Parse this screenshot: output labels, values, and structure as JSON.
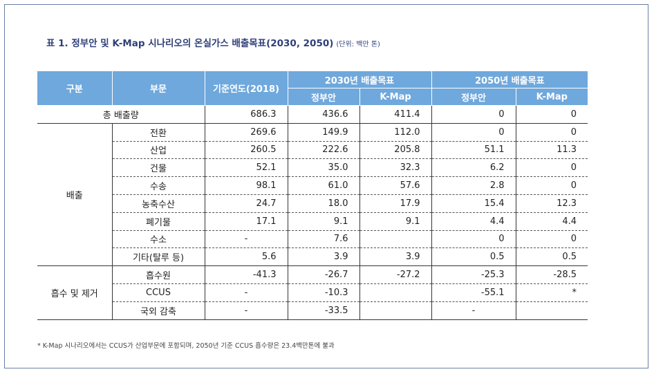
{
  "title": "표 1. 정부안 및 K-Map 시나리오의 온실가스 배출목표(2030, 2050)",
  "unit": "(단위: 백만 톤)",
  "header": {
    "category": "구분",
    "sector": "부문",
    "base_year": "기준연도(2018)",
    "target_2030": "2030년 배출목표",
    "target_2050": "2050년 배출목표",
    "gov": "정부안",
    "kmap": "K-Map"
  },
  "total_label": "총 배출량",
  "total": [
    "686.3",
    "436.6",
    "411.4",
    "0",
    "0"
  ],
  "groups": {
    "emission": "배출",
    "removal": "흡수 및 제거"
  },
  "rows": [
    {
      "sector": "전환",
      "values": [
        "269.6",
        "149.9",
        "112.0",
        "0",
        "0"
      ]
    },
    {
      "sector": "산업",
      "values": [
        "260.5",
        "222.6",
        "205.8",
        "51.1",
        "11.3"
      ]
    },
    {
      "sector": "건물",
      "values": [
        "52.1",
        "35.0",
        "32.3",
        "6.2",
        "0"
      ]
    },
    {
      "sector": "수송",
      "values": [
        "98.1",
        "61.0",
        "57.6",
        "2.8",
        "0"
      ]
    },
    {
      "sector": "농축수산",
      "values": [
        "24.7",
        "18.0",
        "17.9",
        "15.4",
        "12.3"
      ]
    },
    {
      "sector": "폐기물",
      "values": [
        "17.1",
        "9.1",
        "9.1",
        "4.4",
        "4.4"
      ]
    },
    {
      "sector": "수소",
      "values": [
        "-",
        "7.6",
        "",
        "0",
        "0"
      ]
    },
    {
      "sector": "기타(탈루 등)",
      "values": [
        "5.6",
        "3.9",
        "3.9",
        "0.5",
        "0.5"
      ]
    },
    {
      "sector": "흡수원",
      "values": [
        "-41.3",
        "-26.7",
        "-27.2",
        "-25.3",
        "-28.5"
      ]
    },
    {
      "sector": "CCUS",
      "values": [
        "-",
        "-10.3",
        "",
        "-55.1",
        "*"
      ]
    },
    {
      "sector": "국외 감축",
      "values": [
        "-",
        "-33.5",
        "",
        "-",
        ""
      ]
    }
  ],
  "footnote": "* K-Map 시나리오에서는 CCUS가 산업부문에 포함되며, 2050년 기준 CCUS 흡수량은 23.4백만톤에 불과"
}
